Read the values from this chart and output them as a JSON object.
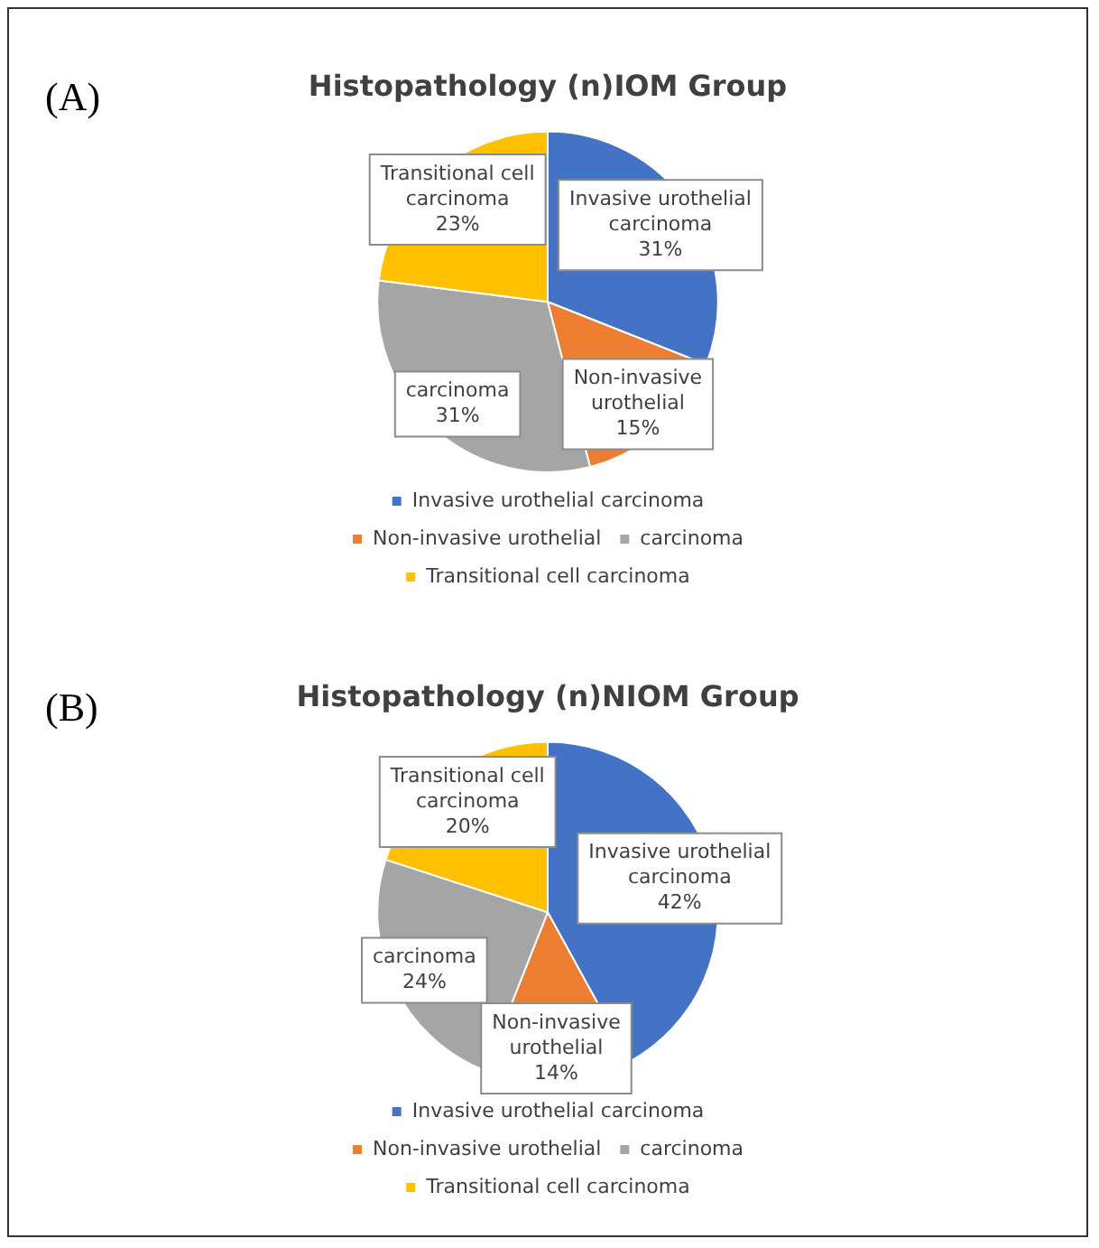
{
  "chart_data": [
    {
      "type": "pie",
      "title": "Histopathology (n)IOM Group",
      "annotations": [
        "(A)"
      ],
      "categories": [
        "Invasive urothelial carcinoma",
        "Non-invasive urothelial",
        "carcinoma",
        "Transitional cell carcinoma"
      ],
      "values": [
        31,
        15,
        31,
        23
      ],
      "colors": [
        "#4472c4",
        "#ed7d31",
        "#a5a5a5",
        "#ffc000"
      ],
      "value_labels": [
        "31%",
        "15%",
        "31%",
        "23%"
      ],
      "legend": "bottom"
    },
    {
      "type": "pie",
      "title": "Histopathology (n)NIOM Group",
      "annotations": [
        "(B)"
      ],
      "categories": [
        "Invasive urothelial carcinoma",
        "Non-invasive urothelial",
        "carcinoma",
        "Transitional cell carcinoma"
      ],
      "values": [
        42,
        14,
        24,
        20
      ],
      "colors": [
        "#4472c4",
        "#ed7d31",
        "#a5a5a5",
        "#ffc000"
      ],
      "value_labels": [
        "42%",
        "14%",
        "24%",
        "20%"
      ],
      "legend": "bottom"
    }
  ]
}
